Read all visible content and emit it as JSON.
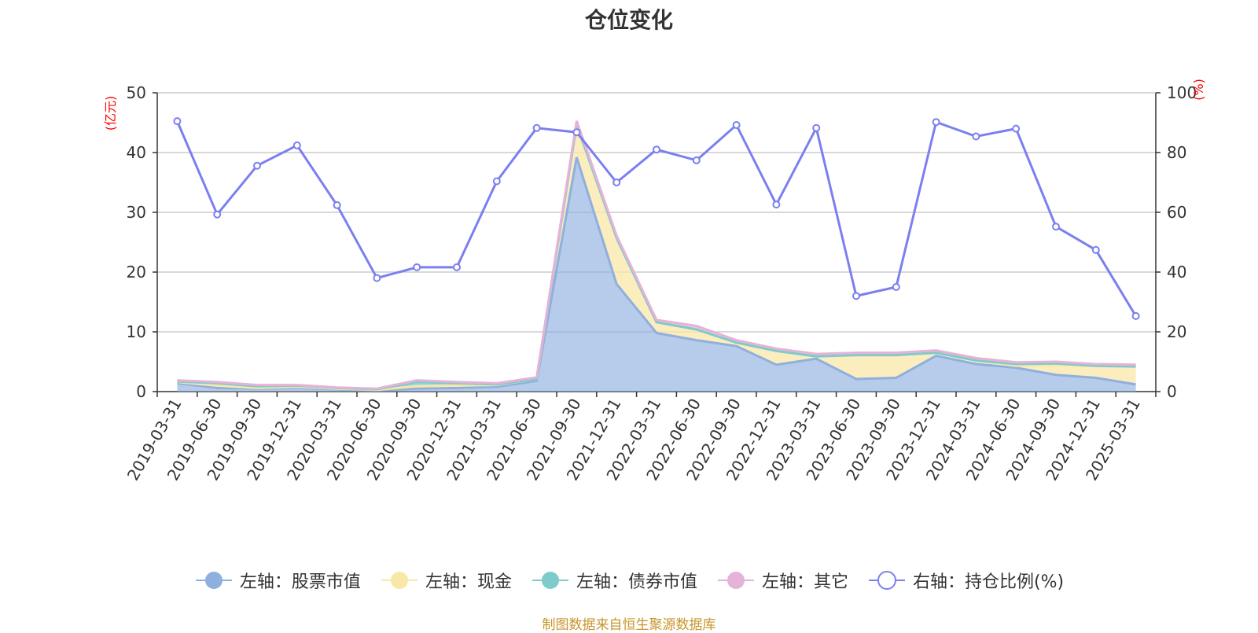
{
  "title": "仓位变化",
  "source": "制图数据来自恒生聚源数据库",
  "colors": {
    "stock": "#8fb0de",
    "cash": "#f9e7a7",
    "bond": "#7ecbcb",
    "other": "#e6b2d8",
    "ratio": "#7b7ff0",
    "unit": "#ff0000",
    "grid": "#cccccc",
    "axis": "#333333"
  },
  "legend": [
    {
      "key": "stock",
      "label": "左轴：股票市值"
    },
    {
      "key": "cash",
      "label": "左轴：现金"
    },
    {
      "key": "bond",
      "label": "左轴：债券市值"
    },
    {
      "key": "other",
      "label": "左轴：其它"
    },
    {
      "key": "ratio",
      "label": "右轴：持仓比例(%)"
    }
  ],
  "chart_data": {
    "type": "area",
    "title": "仓位变化",
    "left_axis": {
      "unit": "(亿元)",
      "range": [
        0,
        50
      ],
      "ticks": [
        "0",
        "10",
        "20",
        "30",
        "40",
        "50"
      ]
    },
    "right_axis": {
      "unit": "(%)",
      "range": [
        0,
        100
      ],
      "ticks": [
        "0",
        "20",
        "40",
        "60",
        "80",
        "100"
      ]
    },
    "grid": true,
    "legend_position": "bottom",
    "categories": [
      "2019-03-31",
      "2019-06-30",
      "2019-09-30",
      "2019-12-31",
      "2020-03-31",
      "2020-06-30",
      "2020-09-30",
      "2020-12-31",
      "2021-03-31",
      "2021-06-30",
      "2021-09-30",
      "2021-12-31",
      "2022-03-31",
      "2022-06-30",
      "2022-09-30",
      "2022-12-31",
      "2023-03-31",
      "2023-06-30",
      "2023-09-30",
      "2023-12-31",
      "2024-03-31",
      "2024-06-30",
      "2024-09-30",
      "2024-12-31",
      "2025-03-31"
    ],
    "series": [
      {
        "name": "左轴：股票市值",
        "axis": "left",
        "stack": true,
        "values": [
          1.4,
          0.6,
          0.5,
          0.6,
          0.4,
          0.2,
          0.5,
          0.6,
          0.8,
          1.8,
          39.2,
          18.0,
          9.8,
          8.6,
          7.6,
          4.5,
          5.5,
          2.1,
          2.3,
          6.0,
          4.6,
          4.0,
          2.8,
          2.3,
          1.2
        ]
      },
      {
        "name": "左轴：现金",
        "axis": "left",
        "stack": true,
        "values": [
          0.2,
          0.4,
          0.1,
          0.2,
          0.1,
          0.1,
          0.4,
          0.4,
          0.3,
          0.3,
          5.5,
          7.7,
          1.8,
          1.8,
          0.6,
          2.3,
          0.4,
          4.0,
          3.8,
          0.5,
          0.6,
          0.3,
          1.6,
          2.0,
          3.0
        ]
      },
      {
        "name": "左轴：债券市值",
        "axis": "left",
        "stack": true,
        "values": [
          0.1,
          0.4,
          0.3,
          0.2,
          0.1,
          0.1,
          0.7,
          0.4,
          0.1,
          0.0,
          0.0,
          0.0,
          0.0,
          0.0,
          0.0,
          0.0,
          0.0,
          0.0,
          0.0,
          0.0,
          0.0,
          0.3,
          0.3,
          0.0,
          0.0
        ]
      },
      {
        "name": "左轴：其它",
        "axis": "left",
        "stack": true,
        "values": [
          0.2,
          0.2,
          0.2,
          0.1,
          0.1,
          0.1,
          0.3,
          0.2,
          0.2,
          0.3,
          0.6,
          0.4,
          0.4,
          0.6,
          0.4,
          0.4,
          0.4,
          0.4,
          0.4,
          0.4,
          0.4,
          0.3,
          0.3,
          0.3,
          0.3
        ]
      },
      {
        "name": "右轴：持仓比例(%)",
        "axis": "right",
        "type": "line",
        "values": [
          90.5,
          59.3,
          75.6,
          82.4,
          62.4,
          38.0,
          41.6,
          41.6,
          70.4,
          88.2,
          86.8,
          70.0,
          81.0,
          77.4,
          89.2,
          62.6,
          88.2,
          32.0,
          35.0,
          90.2,
          85.4,
          88.0,
          55.2,
          47.4,
          25.3
        ]
      }
    ]
  }
}
